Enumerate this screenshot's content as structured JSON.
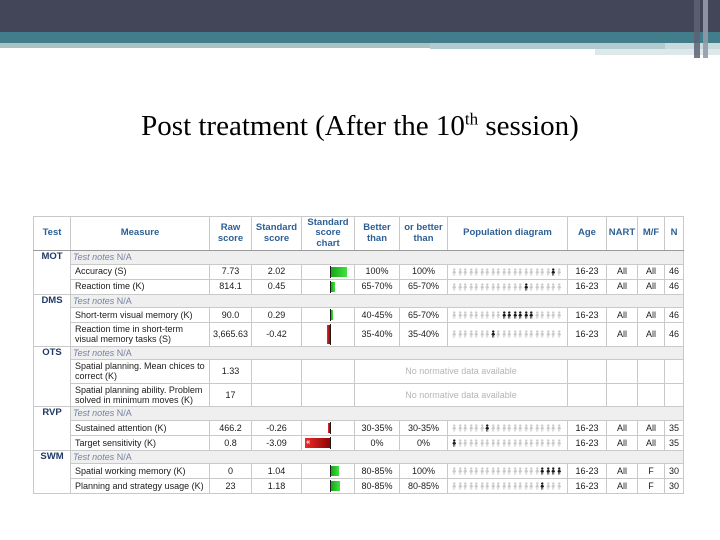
{
  "slide": {
    "title_prefix": "Post treatment (After the 10",
    "title_sup": "th",
    "title_suffix": " session)"
  },
  "colors": {
    "accent_dark": "#434659",
    "accent_teal": "#417d8a",
    "accent_sage": "#a9c3c3",
    "header_text": "#2e6095",
    "positive_bar": "#2ecc2e",
    "negative_bar": "#cc1111",
    "population_inactive": "#c9c9c9",
    "population_active": "#1a1a1a"
  },
  "table": {
    "headers": [
      "Test",
      "Measure",
      "Raw score",
      "Standard score",
      "Standard score chart",
      "Better than",
      "or better than",
      "Population diagram",
      "Age",
      "NART",
      "M/F",
      "N"
    ],
    "notes_label": "Test notes",
    "notes_value": " N/A",
    "no_data_label": "No normative data available",
    "clip_marker": "«",
    "population_total": 20,
    "sections": [
      {
        "code": "MOT",
        "rows": [
          {
            "measure": "Accuracy (S)",
            "raw": "7.73",
            "std": "2.02",
            "better": "100%",
            "or_better": "100%",
            "pop_dark": [
              18
            ],
            "age": "16-23",
            "nart": "All",
            "mf": "All",
            "n": "46"
          },
          {
            "measure": "Reaction time (K)",
            "raw": "814.1",
            "std": "0.45",
            "better": "65-70%",
            "or_better": "65-70%",
            "pop_dark": [
              13
            ],
            "age": "16-23",
            "nart": "All",
            "mf": "All",
            "n": "46"
          }
        ]
      },
      {
        "code": "DMS",
        "rows": [
          {
            "measure": "Short-term visual memory (K)",
            "raw": "90.0",
            "std": "0.29",
            "better": "40-45%",
            "or_better": "65-70%",
            "pop_dark": [
              9,
              10,
              11,
              12,
              13,
              14
            ],
            "age": "16-23",
            "nart": "All",
            "mf": "All",
            "n": "46"
          },
          {
            "measure": "Reaction time in short-term visual memory tasks (S)",
            "raw": "3,665.63",
            "std": "-0.42",
            "better": "35-40%",
            "or_better": "35-40%",
            "pop_dark": [
              7
            ],
            "age": "16-23",
            "nart": "All",
            "mf": "All",
            "n": "46",
            "tall": true
          }
        ]
      },
      {
        "code": "OTS",
        "rows": [
          {
            "measure": "Spatial planning. Mean chices to correct (K)",
            "raw": "1.33",
            "std": "",
            "no_data": true,
            "tall": true
          },
          {
            "measure": "Spatial planning ability. Problem solved in minimum moves (K)",
            "raw": "17",
            "std": "",
            "no_data": true,
            "tall": true
          }
        ]
      },
      {
        "code": "RVP",
        "rows": [
          {
            "measure": "Sustained attention (K)",
            "raw": "466.2",
            "std": "-0.26",
            "better": "30-35%",
            "or_better": "30-35%",
            "pop_dark": [
              6
            ],
            "age": "16-23",
            "nart": "All",
            "mf": "All",
            "n": "35"
          },
          {
            "measure": "Target sensitivity (K)",
            "raw": "0.8",
            "std": "-3.09",
            "better": "0%",
            "or_better": "0%",
            "pop_dark": [
              0
            ],
            "age": "16-23",
            "nart": "All",
            "mf": "All",
            "n": "35",
            "clipped": true
          }
        ]
      },
      {
        "code": "SWM",
        "rows": [
          {
            "measure": "Spatial working memory (K)",
            "raw": "0",
            "std": "1.04",
            "better": "80-85%",
            "or_better": "100%",
            "pop_dark": [
              16,
              17,
              18,
              19
            ],
            "age": "16-23",
            "nart": "All",
            "mf": "F",
            "n": "30"
          },
          {
            "measure": "Planning and strategy usage (K)",
            "raw": "23",
            "std": "1.18",
            "better": "80-85%",
            "or_better": "80-85%",
            "pop_dark": [
              16
            ],
            "age": "16-23",
            "nart": "All",
            "mf": "F",
            "n": "30"
          }
        ]
      }
    ]
  }
}
